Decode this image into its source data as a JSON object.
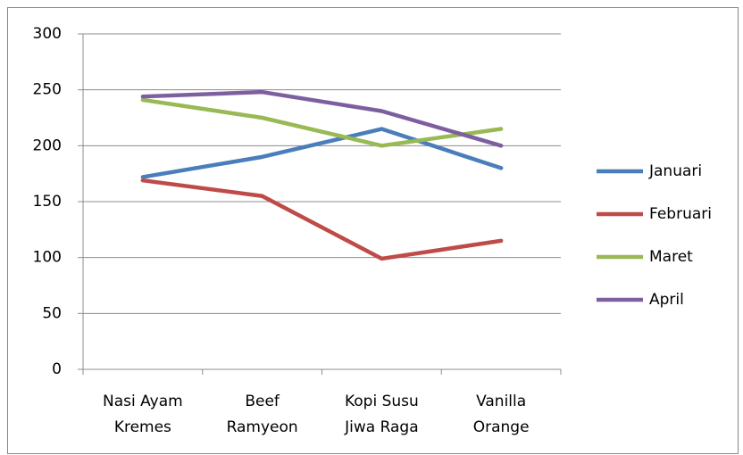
{
  "chart_data": {
    "type": "line",
    "categories": [
      "Nasi Ayam Kremes",
      "Beef Ramyeon",
      "Kopi Susu Jiwa Raga",
      "Vanilla Orange"
    ],
    "series": [
      {
        "name": "Januari",
        "color": "#4a7ebb",
        "values": [
          172,
          190,
          215,
          180
        ]
      },
      {
        "name": "Februari",
        "color": "#be4b48",
        "values": [
          169,
          155,
          99,
          115
        ]
      },
      {
        "name": "Maret",
        "color": "#98b954",
        "values": [
          241,
          225,
          200,
          215
        ]
      },
      {
        "name": "April",
        "color": "#7d5fa0",
        "values": [
          244,
          248,
          231,
          200
        ]
      }
    ],
    "ylim": [
      0,
      300
    ],
    "yticks": [
      0,
      50,
      100,
      150,
      200,
      250,
      300
    ],
    "grid": true,
    "legend": "right"
  }
}
